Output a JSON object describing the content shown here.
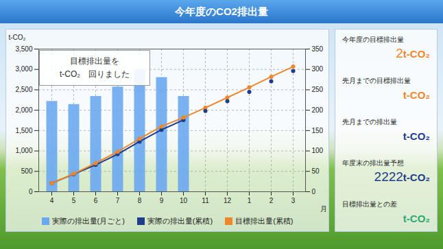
{
  "header": {
    "title": "今年度のCO2排出量"
  },
  "chart_data": {
    "type": "combo",
    "categories": [
      "4",
      "5",
      "6",
      "7",
      "8",
      "9",
      "10",
      "11",
      "12",
      "1",
      "2",
      "3"
    ],
    "xlabel": "月",
    "ylabel": "t-CO₂",
    "ylim": [
      0,
      3500
    ],
    "yticks": [
      0,
      500,
      {
        "value": 1000,
        "label": "1,000"
      },
      {
        "value": 1500,
        "label": "1,500"
      },
      {
        "value": 2000,
        "label": "2,000"
      },
      {
        "value": 2500,
        "label": "2,500"
      },
      {
        "value": 3000,
        "label": "3,000"
      },
      {
        "value": 3500,
        "label": "3,500"
      }
    ],
    "y2lim": [
      0,
      350
    ],
    "y2ticks": [
      0,
      50,
      100,
      150,
      200,
      250,
      300,
      350
    ],
    "grid": true,
    "legend": "bottom",
    "series": [
      {
        "name": "実際の排出量(月ごと)",
        "type": "bar",
        "color": "#6aa8ef",
        "values": [
          2215,
          2140,
          2340,
          2570,
          3000,
          2800,
          2340,
          null,
          null,
          null,
          null,
          null
        ]
      },
      {
        "name": "実際の排出量(累積)",
        "type": "line",
        "axis": "y2",
        "color": "#1f3d8a",
        "marker": "dot",
        "values": [
          21,
          43,
          66,
          92,
          123,
          152,
          176,
          null,
          null,
          null,
          null,
          null
        ]
      },
      {
        "name": "目標排出量(累積)",
        "type": "line",
        "axis": "y2",
        "color": "#f0862a",
        "marker": "dot",
        "values": [
          21,
          44,
          70,
          98,
          130,
          160,
          182,
          206,
          231,
          256,
          282,
          307
        ]
      },
      {
        "type": "scatter",
        "axis": "y2",
        "color": "#1f3d8a",
        "marker": "dot",
        "values": [
          null,
          null,
          null,
          null,
          null,
          null,
          null,
          198,
          222,
          245,
          271,
          296
        ]
      }
    ],
    "annotation": [
      "目標排出量を",
      "t-CO₂　回りました"
    ]
  },
  "panel": {
    "items": [
      {
        "label": "今年度の目標排出量",
        "value": "2",
        "unit": "t-CO₂",
        "color": "#f0862a"
      },
      {
        "label": "先月までの目標排出量",
        "value": "",
        "unit": "t-CO₂",
        "color": "#f0862a"
      },
      {
        "label": "先月までの排出量",
        "value": "",
        "unit": "t-CO₂",
        "color": "#1f3d8a"
      },
      {
        "label": "年度末の排出量予想",
        "value": "2222",
        "unit": "t-CO₂",
        "color": "#1f3d8a"
      },
      {
        "label": "目標排出量との差",
        "value": "",
        "unit": "t-CO₂",
        "color": "#2aa876"
      }
    ]
  }
}
